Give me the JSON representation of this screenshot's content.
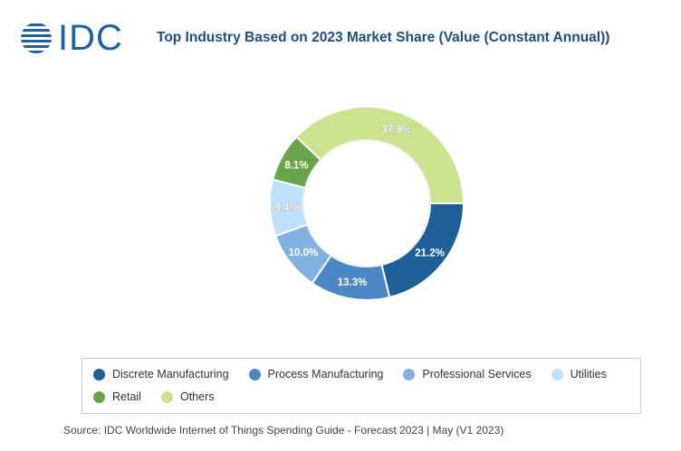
{
  "logo": {
    "text": "IDC",
    "color": "#1f5fa3"
  },
  "chart_data": {
    "type": "pie",
    "variant": "donut",
    "title": "Top Industry Based on 2023 Market Share (Value (Constant Annual))",
    "slices": [
      {
        "label": "Discrete Manufacturing",
        "value": 21.2,
        "display": "21.2%",
        "color": "#1e5f9a"
      },
      {
        "label": "Process Manufacturing",
        "value": 13.3,
        "display": "13.3%",
        "color": "#4a87c3"
      },
      {
        "label": "Professional Services",
        "value": 10.0,
        "display": "10.0%",
        "color": "#82b1df"
      },
      {
        "label": "Utilities",
        "value": 9.4,
        "display": "9.4%",
        "color": "#bde0fb"
      },
      {
        "label": "Retail",
        "value": 8.1,
        "display": "8.1%",
        "color": "#6aa44a"
      },
      {
        "label": "Others",
        "value": 37.9,
        "display": "37.9%",
        "color": "#cce38f"
      }
    ],
    "start": "3 o'clock",
    "direction": "clockwise",
    "legend_position": "bottom"
  },
  "source": "Source: IDC Worldwide Internet of Things Spending Guide - Forecast 2023 | May (V1 2023)"
}
